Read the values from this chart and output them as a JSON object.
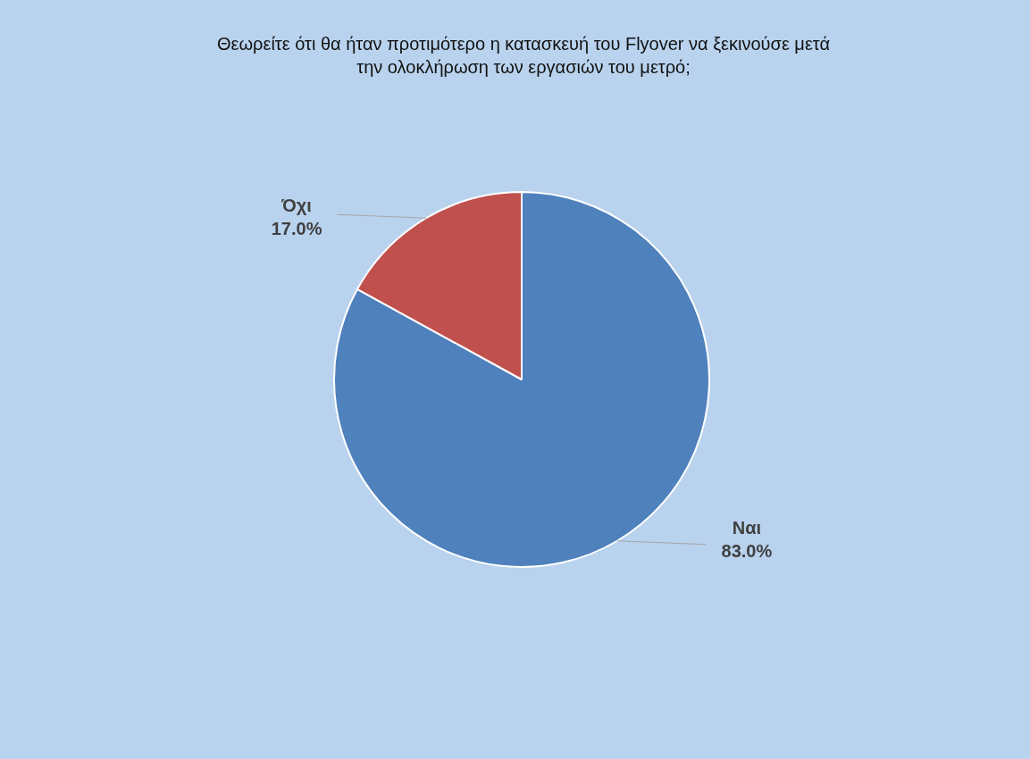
{
  "chart_data": {
    "type": "pie",
    "title": "Θεωρείτε ότι θα ήταν προτιμότερο η κατασκευή του Flyover να ξεκινούσε μετά την ολοκλήρωση των εργασιών του μετρό;",
    "categories": [
      "Ναι",
      "Όχι"
    ],
    "values": [
      83,
      17
    ],
    "value_labels": [
      "83.0%",
      "17.0%"
    ],
    "colors": [
      "#4f81bd",
      "#c0504d"
    ],
    "legend": false
  }
}
